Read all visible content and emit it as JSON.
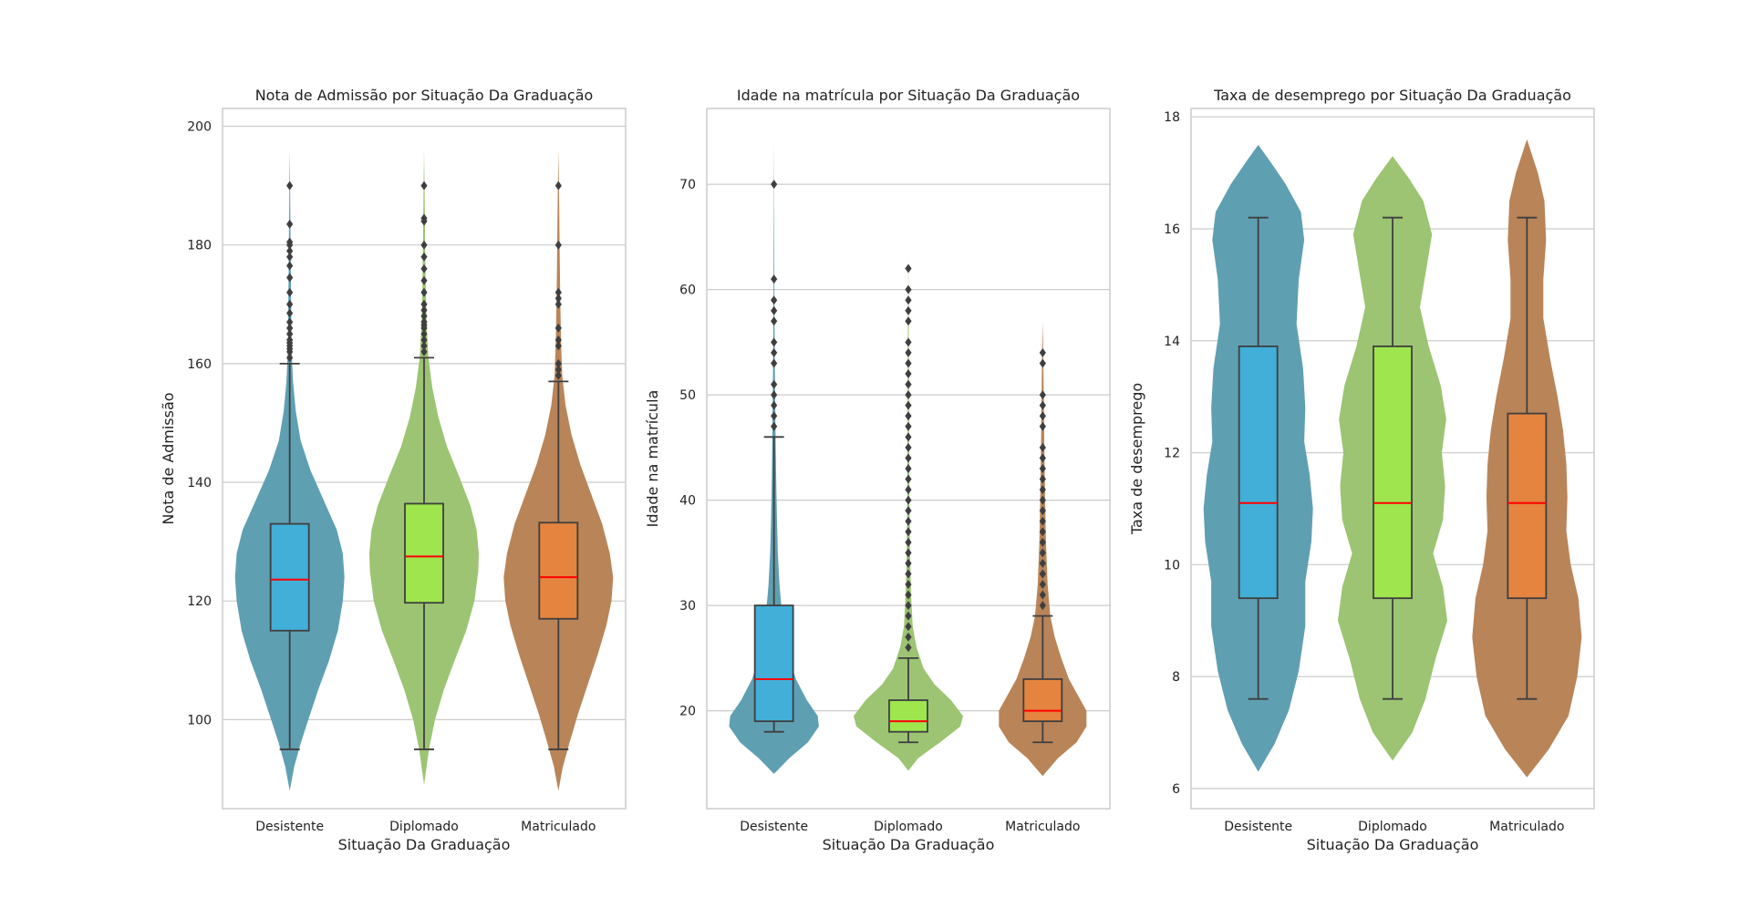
{
  "colors": {
    "background": "#ffffff",
    "grid": "#cccccc",
    "frame": "#cccccc",
    "box_edge": "#3f3f3f",
    "median": "#ff0000",
    "outlier": "#3f3f3f"
  },
  "chart_data": [
    {
      "type": "violin",
      "title": "Nota de Admissão por Situação Da Graduação",
      "xlabel": "Situação Da Graduação",
      "ylabel": "Nota de Admissão",
      "categories": [
        "Desistente",
        "Diplomado",
        "Matriculado"
      ],
      "violin_colors": [
        "#5f9fb2",
        "#9cc472",
        "#b98458"
      ],
      "box_colors": [
        "#41afd8",
        "#9ee54e",
        "#e4843e"
      ],
      "ylim": [
        85,
        203
      ],
      "yticks": [
        100,
        120,
        140,
        160,
        180,
        200
      ],
      "grid": true,
      "series": [
        {
          "category": "Desistente",
          "box": {
            "q1": 115,
            "median": 123.6,
            "q3": 133,
            "whisker_low": 95,
            "whisker_high": 160
          },
          "outliers": [
            161,
            162,
            162.5,
            163,
            163.5,
            164,
            165,
            166,
            167,
            168.5,
            170,
            172,
            174.5,
            176.5,
            178,
            179,
            180,
            180.5,
            183.5,
            190
          ],
          "density": [
            [
              88,
              0
            ],
            [
              92,
              0.08
            ],
            [
              96,
              0.2
            ],
            [
              100,
              0.34
            ],
            [
              105,
              0.52
            ],
            [
              110,
              0.72
            ],
            [
              115,
              0.88
            ],
            [
              120,
              0.97
            ],
            [
              124,
              1.0
            ],
            [
              128,
              0.97
            ],
            [
              132,
              0.86
            ],
            [
              137,
              0.62
            ],
            [
              142,
              0.38
            ],
            [
              147,
              0.2
            ],
            [
              152,
              0.11
            ],
            [
              157,
              0.06
            ],
            [
              162,
              0.035
            ],
            [
              170,
              0.025
            ],
            [
              178,
              0.018
            ],
            [
              186,
              0.01
            ],
            [
              196,
              0
            ]
          ]
        },
        {
          "category": "Diplomado",
          "box": {
            "q1": 119.7,
            "median": 127.5,
            "q3": 136.4,
            "whisker_low": 95,
            "whisker_high": 161
          },
          "outliers": [
            162,
            163,
            164,
            165,
            166,
            166.5,
            167,
            168,
            169,
            170,
            172,
            174,
            176,
            178,
            180,
            184,
            184.5,
            190
          ],
          "density": [
            [
              89,
              0
            ],
            [
              95,
              0.09
            ],
            [
              100,
              0.2
            ],
            [
              105,
              0.36
            ],
            [
              110,
              0.56
            ],
            [
              115,
              0.77
            ],
            [
              120,
              0.92
            ],
            [
              125,
              0.99
            ],
            [
              128,
              1.0
            ],
            [
              132,
              0.96
            ],
            [
              136,
              0.85
            ],
            [
              141,
              0.64
            ],
            [
              146,
              0.42
            ],
            [
              151,
              0.26
            ],
            [
              156,
              0.15
            ],
            [
              161,
              0.08
            ],
            [
              166,
              0.05
            ],
            [
              173,
              0.03
            ],
            [
              181,
              0.018
            ],
            [
              189,
              0.01
            ],
            [
              196,
              0
            ]
          ]
        },
        {
          "category": "Matriculado",
          "box": {
            "q1": 117,
            "median": 124,
            "q3": 133.2,
            "whisker_low": 95,
            "whisker_high": 157
          },
          "outliers": [
            158,
            159,
            160,
            163,
            164,
            166,
            170,
            171,
            172,
            180,
            190
          ],
          "density": [
            [
              88,
              0
            ],
            [
              92,
              0.08
            ],
            [
              96,
              0.2
            ],
            [
              101,
              0.36
            ],
            [
              106,
              0.54
            ],
            [
              111,
              0.72
            ],
            [
              116,
              0.88
            ],
            [
              120,
              0.97
            ],
            [
              124,
              1.0
            ],
            [
              128,
              0.94
            ],
            [
              133,
              0.8
            ],
            [
              138,
              0.6
            ],
            [
              143,
              0.4
            ],
            [
              148,
              0.24
            ],
            [
              153,
              0.13
            ],
            [
              158,
              0.07
            ],
            [
              163,
              0.05
            ],
            [
              170,
              0.035
            ],
            [
              177,
              0.025
            ],
            [
              186,
              0.015
            ],
            [
              196,
              0
            ]
          ]
        }
      ]
    },
    {
      "type": "violin",
      "title": "Idade na matrícula por Situação Da Graduação",
      "xlabel": "Situação Da Graduação",
      "ylabel": "Idade na matrícula",
      "categories": [
        "Desistente",
        "Diplomado",
        "Matriculado"
      ],
      "violin_colors": [
        "#5f9fb2",
        "#9cc472",
        "#b98458"
      ],
      "box_colors": [
        "#41afd8",
        "#9ee54e",
        "#e4843e"
      ],
      "ylim": [
        10.7,
        77.2
      ],
      "yticks": [
        20,
        30,
        40,
        50,
        60,
        70
      ],
      "grid": true,
      "series": [
        {
          "category": "Desistente",
          "box": {
            "q1": 19,
            "median": 23,
            "q3": 30,
            "whisker_low": 18,
            "whisker_high": 46
          },
          "outliers": [
            47,
            48,
            49,
            50,
            51,
            53,
            54,
            55,
            57,
            58,
            59,
            61,
            70
          ],
          "density": [
            [
              14,
              0
            ],
            [
              15.5,
              0.28
            ],
            [
              17,
              0.62
            ],
            [
              18.5,
              0.82
            ],
            [
              19.5,
              0.8
            ],
            [
              21,
              0.6
            ],
            [
              23,
              0.4
            ],
            [
              25,
              0.28
            ],
            [
              27,
              0.2
            ],
            [
              29,
              0.15
            ],
            [
              32,
              0.1
            ],
            [
              35,
              0.07
            ],
            [
              38,
              0.055
            ],
            [
              42,
              0.04
            ],
            [
              47,
              0.028
            ],
            [
              52,
              0.018
            ],
            [
              57,
              0.01
            ],
            [
              63,
              0.006
            ],
            [
              70,
              0.003
            ],
            [
              74,
              0
            ]
          ]
        },
        {
          "category": "Diplomado",
          "box": {
            "q1": 18,
            "median": 19,
            "q3": 21,
            "whisker_low": 17,
            "whisker_high": 25
          },
          "outliers": [
            26,
            27,
            28,
            29,
            30,
            31,
            32,
            33,
            34,
            35,
            36,
            37,
            38,
            39,
            40,
            41,
            42,
            43,
            44,
            45,
            46,
            47,
            48,
            49,
            50,
            51,
            52,
            53,
            54,
            55,
            57,
            58,
            59,
            60,
            62
          ],
          "density": [
            [
              14.3,
              0
            ],
            [
              15.5,
              0.18
            ],
            [
              17,
              0.58
            ],
            [
              18.5,
              0.95
            ],
            [
              19.5,
              1.0
            ],
            [
              21,
              0.78
            ],
            [
              22.5,
              0.48
            ],
            [
              24,
              0.28
            ],
            [
              26,
              0.15
            ],
            [
              28,
              0.08
            ],
            [
              31,
              0.05
            ],
            [
              35,
              0.03
            ],
            [
              40,
              0.02
            ],
            [
              46,
              0.014
            ],
            [
              52,
              0.01
            ],
            [
              58,
              0.006
            ],
            [
              63,
              0
            ]
          ]
        },
        {
          "category": "Matriculado",
          "box": {
            "q1": 19,
            "median": 20,
            "q3": 23,
            "whisker_low": 17,
            "whisker_high": 29
          },
          "outliers": [
            30,
            31,
            32,
            33,
            34,
            35,
            36,
            37,
            38,
            39,
            40,
            41,
            42,
            43,
            44,
            45,
            47,
            48,
            49,
            50,
            53,
            54
          ],
          "density": [
            [
              13.8,
              0
            ],
            [
              15.5,
              0.28
            ],
            [
              17,
              0.62
            ],
            [
              18.5,
              0.8
            ],
            [
              20,
              0.8
            ],
            [
              21.5,
              0.64
            ],
            [
              23,
              0.48
            ],
            [
              25,
              0.34
            ],
            [
              27,
              0.22
            ],
            [
              29,
              0.14
            ],
            [
              32,
              0.09
            ],
            [
              36,
              0.06
            ],
            [
              40,
              0.045
            ],
            [
              45,
              0.03
            ],
            [
              50,
              0.02
            ],
            [
              54,
              0.01
            ],
            [
              57,
              0
            ]
          ]
        }
      ]
    },
    {
      "type": "violin",
      "title": "Taxa de desemprego por Situação Da Graduação",
      "xlabel": "Situação Da Graduação",
      "ylabel": "Taxa de desemprego",
      "categories": [
        "Desistente",
        "Diplomado",
        "Matriculado"
      ],
      "violin_colors": [
        "#5f9fb2",
        "#9cc472",
        "#b98458"
      ],
      "box_colors": [
        "#41afd8",
        "#9ee54e",
        "#e4843e"
      ],
      "ylim": [
        5.64,
        18.15
      ],
      "yticks": [
        6,
        8,
        10,
        12,
        14,
        16,
        18
      ],
      "grid": true,
      "series": [
        {
          "category": "Desistente",
          "box": {
            "q1": 9.4,
            "median": 11.1,
            "q3": 13.9,
            "whisker_low": 7.6,
            "whisker_high": 16.2
          },
          "outliers": [],
          "density": [
            [
              6.3,
              0
            ],
            [
              6.8,
              0.3
            ],
            [
              7.4,
              0.56
            ],
            [
              8.1,
              0.74
            ],
            [
              8.9,
              0.86
            ],
            [
              9.7,
              0.86
            ],
            [
              10.4,
              0.97
            ],
            [
              11,
              1.0
            ],
            [
              11.6,
              0.94
            ],
            [
              12.2,
              0.84
            ],
            [
              12.8,
              0.86
            ],
            [
              13.5,
              0.82
            ],
            [
              14.3,
              0.7
            ],
            [
              15.1,
              0.74
            ],
            [
              15.8,
              0.84
            ],
            [
              16.3,
              0.78
            ],
            [
              16.8,
              0.5
            ],
            [
              17.2,
              0.22
            ],
            [
              17.5,
              0
            ]
          ]
        },
        {
          "category": "Diplomado",
          "box": {
            "q1": 9.4,
            "median": 11.1,
            "q3": 13.9,
            "whisker_low": 7.6,
            "whisker_high": 16.2
          },
          "outliers": [],
          "density": [
            [
              6.5,
              0
            ],
            [
              7,
              0.36
            ],
            [
              7.6,
              0.6
            ],
            [
              8.3,
              0.78
            ],
            [
              9,
              1.0
            ],
            [
              9.6,
              0.92
            ],
            [
              10.2,
              0.74
            ],
            [
              10.8,
              0.92
            ],
            [
              11.4,
              0.96
            ],
            [
              12,
              0.9
            ],
            [
              12.6,
              0.98
            ],
            [
              13.2,
              0.88
            ],
            [
              13.9,
              0.66
            ],
            [
              14.6,
              0.5
            ],
            [
              15.3,
              0.62
            ],
            [
              15.9,
              0.72
            ],
            [
              16.5,
              0.56
            ],
            [
              16.9,
              0.3
            ],
            [
              17.3,
              0
            ]
          ]
        },
        {
          "category": "Matriculado",
          "box": {
            "q1": 9.4,
            "median": 11.1,
            "q3": 12.7,
            "whisker_low": 7.6,
            "whisker_high": 16.2
          },
          "outliers": [],
          "density": [
            [
              6.2,
              0
            ],
            [
              6.7,
              0.4
            ],
            [
              7.3,
              0.76
            ],
            [
              8,
              0.92
            ],
            [
              8.7,
              1.0
            ],
            [
              9.4,
              0.94
            ],
            [
              10,
              0.8
            ],
            [
              10.6,
              0.72
            ],
            [
              11.2,
              0.74
            ],
            [
              11.8,
              0.72
            ],
            [
              12.4,
              0.66
            ],
            [
              13,
              0.56
            ],
            [
              13.7,
              0.42
            ],
            [
              14.4,
              0.3
            ],
            [
              15.1,
              0.3
            ],
            [
              15.8,
              0.35
            ],
            [
              16.5,
              0.32
            ],
            [
              17,
              0.2
            ],
            [
              17.6,
              0
            ]
          ]
        }
      ]
    }
  ]
}
